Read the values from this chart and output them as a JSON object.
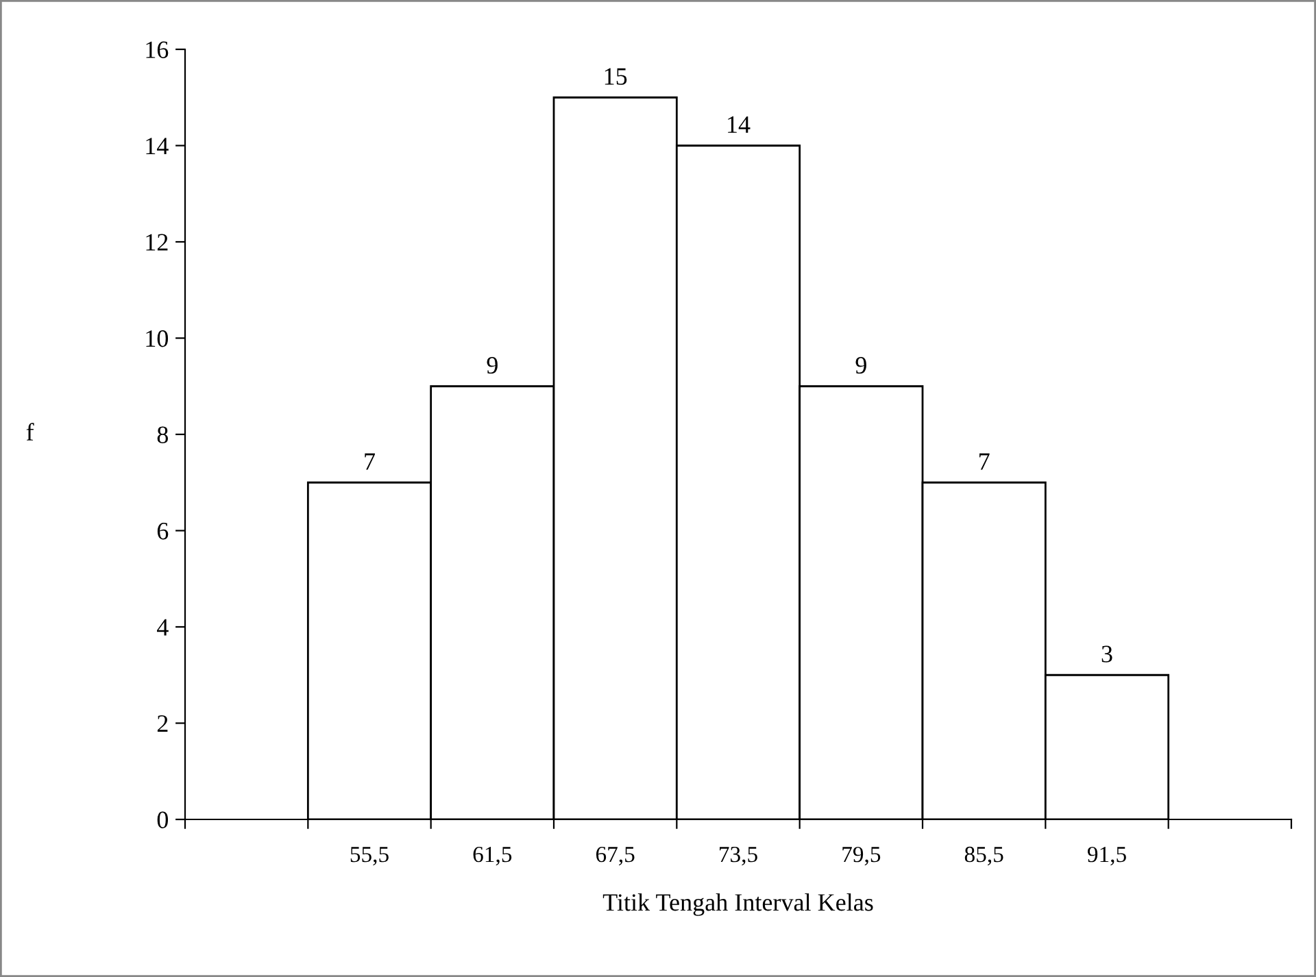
{
  "chart_data": {
    "type": "bar",
    "xlabel": "Titik Tengah Interval Kelas",
    "ylabel": "f",
    "categories": [
      null,
      "55,5",
      "61,5",
      "67,5",
      "73,5",
      "79,5",
      "85,5",
      "91,5",
      null
    ],
    "values": [
      null,
      7,
      9,
      15,
      14,
      9,
      7,
      3,
      null
    ],
    "color": "#ffffff",
    "ylim": [
      0,
      16
    ],
    "yticks": [
      0,
      2,
      4,
      6,
      8,
      10,
      12,
      14,
      16
    ],
    "data_labels": true,
    "grid": false
  }
}
